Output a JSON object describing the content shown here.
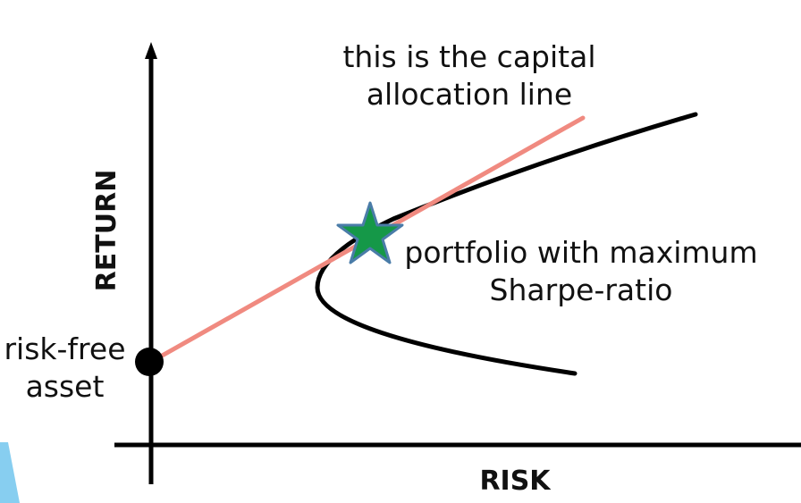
{
  "labels": {
    "cal_line1": "this is the capital",
    "cal_line2": "allocation line",
    "max_sharpe_line1": "portfolio with maximum",
    "max_sharpe_line2": "Sharpe-ratio",
    "risk_free_line1": "risk-free",
    "risk_free_line2": "asset",
    "y_axis": "RETURN",
    "x_axis": "RISK"
  },
  "colors": {
    "axis": "#000000",
    "frontier": "#000000",
    "cal_line": "#f08a80",
    "star_fill": "#159848",
    "star_stroke": "#4a7ca8",
    "risk_free_point": "#000000",
    "corner_accent": "#87cef0"
  }
}
